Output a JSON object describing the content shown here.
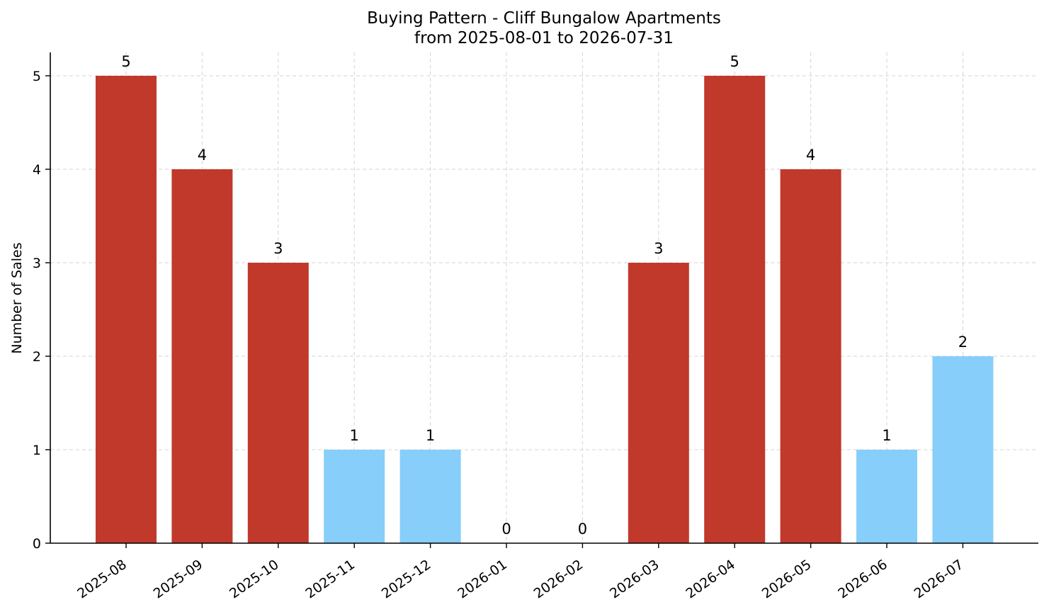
{
  "chart_data": {
    "type": "bar",
    "title": "Buying Pattern - Cliff Bungalow Apartments",
    "subtitle": "from 2025-08-01 to 2026-07-31",
    "xlabel": "",
    "ylabel": "Number of Sales",
    "categories": [
      "2025-08",
      "2025-09",
      "2025-10",
      "2025-11",
      "2025-12",
      "2026-01",
      "2026-02",
      "2026-03",
      "2026-04",
      "2026-05",
      "2026-06",
      "2026-07"
    ],
    "values": [
      5,
      4,
      3,
      1,
      1,
      0,
      0,
      3,
      5,
      4,
      1,
      2
    ],
    "ylim": [
      0,
      5.25
    ],
    "yticks": [
      0,
      1,
      2,
      3,
      4,
      5
    ],
    "grid": true,
    "colors": {
      "high": "#c0392b",
      "low": "#87cefa",
      "grid": "#d3d3d3",
      "axis": "#000000"
    }
  }
}
